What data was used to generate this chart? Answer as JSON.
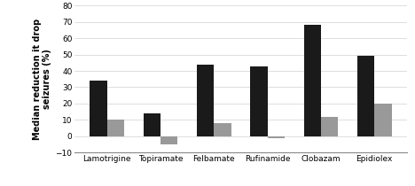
{
  "categories": [
    "Lamotrigine",
    "Topiramate",
    "Felbamate",
    "Rufinamide",
    "Clobazam",
    "Epidiolex"
  ],
  "black_values": [
    34,
    14,
    44,
    43,
    68,
    49
  ],
  "gray_values": [
    10,
    -5,
    8,
    -1,
    12,
    20
  ],
  "black_color": "#1a1a1a",
  "gray_color": "#999999",
  "ylabel_line1": "Median reduction it drop",
  "ylabel_line2": "seizures (%)",
  "ylim": [
    -10,
    80
  ],
  "yticks": [
    -10,
    0,
    10,
    20,
    30,
    40,
    50,
    60,
    70,
    80
  ],
  "bar_width": 0.32,
  "background_color": "#ffffff",
  "ylabel_fontsize": 7,
  "tick_fontsize": 6.5,
  "xtick_fontsize": 6.5
}
